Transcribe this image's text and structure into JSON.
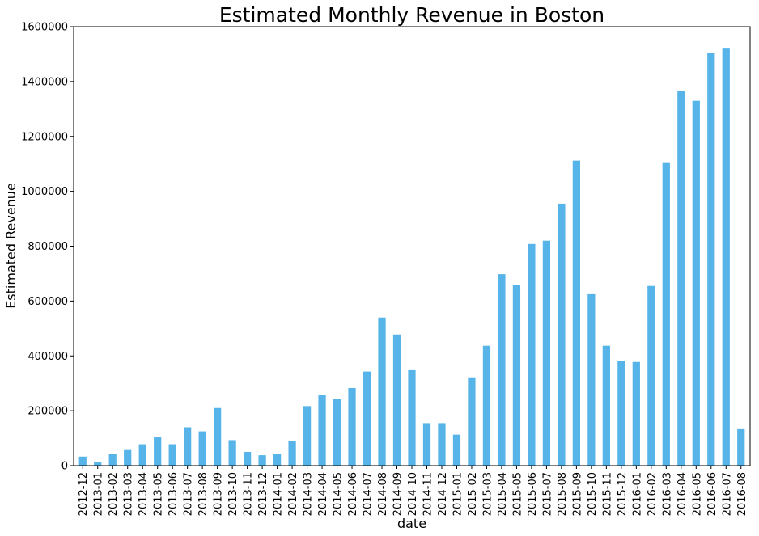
{
  "chart_data": {
    "type": "bar",
    "title": "Estimated Monthly Revenue in Boston",
    "xlabel": "date",
    "ylabel": "Estimated Revenue",
    "ylim": [
      0,
      1600000
    ],
    "yticks": [
      0,
      200000,
      400000,
      600000,
      800000,
      1000000,
      1200000,
      1400000,
      1600000
    ],
    "grid": false,
    "bar_color": "#56b4e9",
    "categories": [
      "2012-12",
      "2013-01",
      "2013-02",
      "2013-03",
      "2013-04",
      "2013-05",
      "2013-06",
      "2013-07",
      "2013-08",
      "2013-09",
      "2013-10",
      "2013-11",
      "2013-12",
      "2014-01",
      "2014-02",
      "2014-03",
      "2014-04",
      "2014-05",
      "2014-06",
      "2014-07",
      "2014-08",
      "2014-09",
      "2014-10",
      "2014-11",
      "2014-12",
      "2015-01",
      "2015-02",
      "2015-03",
      "2015-04",
      "2015-05",
      "2015-06",
      "2015-07",
      "2015-08",
      "2015-09",
      "2015-10",
      "2015-11",
      "2015-12",
      "2016-01",
      "2016-02",
      "2016-03",
      "2016-04",
      "2016-05",
      "2016-06",
      "2016-07",
      "2016-08"
    ],
    "values": [
      33000,
      12000,
      42000,
      57000,
      78000,
      103000,
      78000,
      140000,
      125000,
      210000,
      93000,
      50000,
      38000,
      42000,
      90000,
      217000,
      258000,
      243000,
      283000,
      343000,
      540000,
      478000,
      348000,
      155000,
      155000,
      113000,
      322000,
      437000,
      698000,
      658000,
      808000,
      820000,
      955000,
      1112000,
      625000,
      437000,
      383000,
      378000,
      655000,
      1103000,
      1365000,
      1330000,
      1503000,
      1523000,
      133000
    ]
  }
}
